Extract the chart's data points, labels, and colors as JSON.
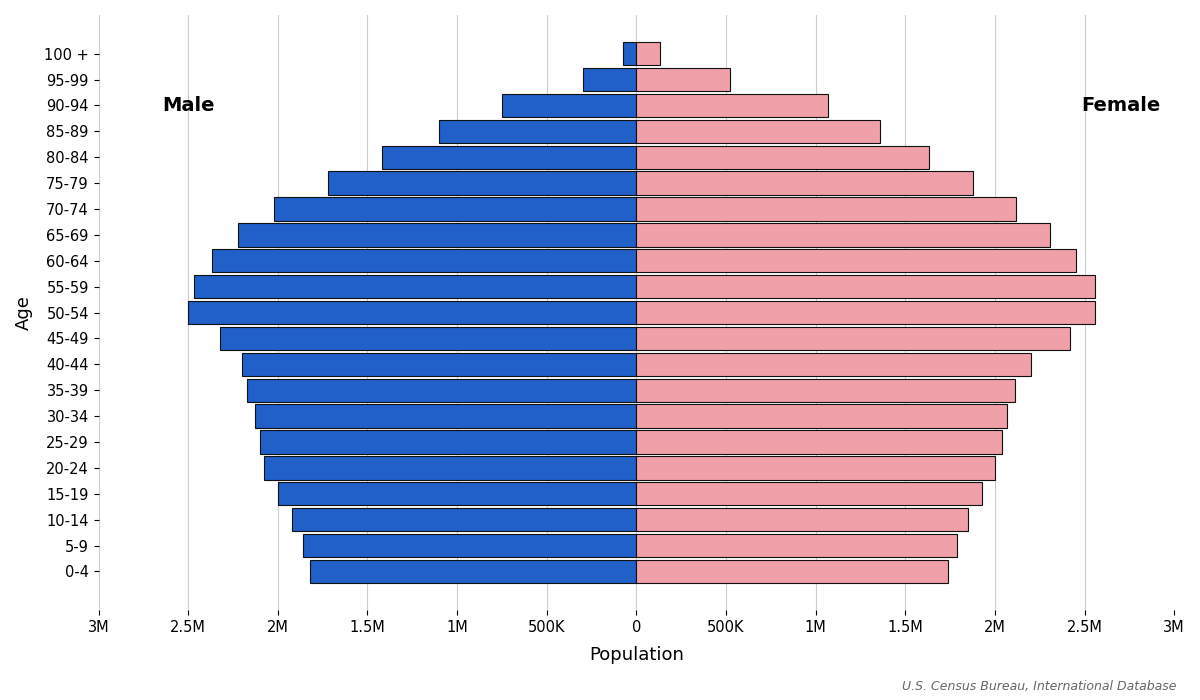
{
  "age_groups": [
    "0-4",
    "5-9",
    "10-14",
    "15-19",
    "20-24",
    "25-29",
    "30-34",
    "35-39",
    "40-44",
    "45-49",
    "50-54",
    "55-59",
    "60-64",
    "65-69",
    "70-74",
    "75-79",
    "80-84",
    "85-89",
    "90-94",
    "95-99",
    "100 +"
  ],
  "male": [
    1820000,
    1860000,
    1920000,
    2000000,
    2080000,
    2100000,
    2130000,
    2170000,
    2200000,
    2320000,
    2500000,
    2470000,
    2370000,
    2220000,
    2020000,
    1720000,
    1420000,
    1100000,
    750000,
    300000,
    75000
  ],
  "female": [
    1740000,
    1790000,
    1850000,
    1930000,
    2000000,
    2040000,
    2070000,
    2110000,
    2200000,
    2420000,
    2560000,
    2560000,
    2450000,
    2310000,
    2120000,
    1880000,
    1630000,
    1360000,
    1070000,
    520000,
    130000
  ],
  "male_color": "#2060c8",
  "female_color": "#f0a0a8",
  "bar_edgecolor": "#111111",
  "bar_linewidth": 0.8,
  "xlim": 3000000,
  "xlabel": "Population",
  "ylabel": "Age",
  "male_label": "Male",
  "female_label": "Female",
  "source_text": "U.S. Census Bureau, International Database",
  "grid_color": "#cccccc",
  "background_color": "#ffffff",
  "tick_values": [
    -3000000,
    -2500000,
    -2000000,
    -1500000,
    -1000000,
    -500000,
    0,
    500000,
    1000000,
    1500000,
    2000000,
    2500000,
    3000000
  ],
  "tick_labels_display": [
    "3M",
    "2.5M",
    "2M",
    "1.5M",
    "1M",
    "500K",
    "0",
    "500K",
    "1M",
    "1.5M",
    "2M",
    "2.5M",
    "3M"
  ]
}
